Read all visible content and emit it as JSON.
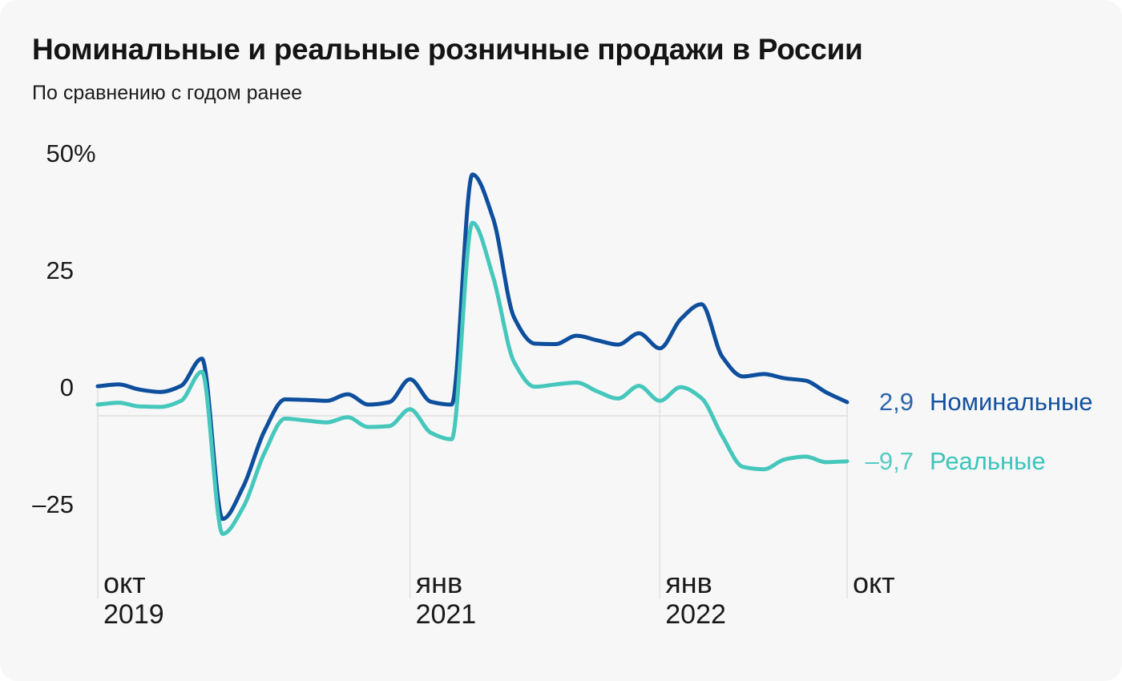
{
  "card": {
    "title": "Номинальные и реальные розничные продажи в России",
    "subtitle": "По сравнению с годом ранее"
  },
  "colors": {
    "background": "#F7F7F8",
    "text": "#1A1A1A",
    "grid": "#E0E0E0",
    "nominal_line": "#0E4F9D",
    "nominal_value": "#2B66AC",
    "nominal_name": "#12519E",
    "real_line": "#45C7BC",
    "real_value": "#55CCC2",
    "real_name": "#3CC5BA"
  },
  "chart_data": {
    "type": "line",
    "title": "Номинальные и реальные розничные продажи в России",
    "subtitle": "По сравнению с годом ранее",
    "unit": "%",
    "ylim": [
      -32,
      55
    ],
    "grid": "horizontal zero line + vertical lines at labeled months",
    "legend_position": "right of line ends",
    "x": [
      "2019-10",
      "2019-11",
      "2019-12",
      "2020-01",
      "2020-02",
      "2020-03",
      "2020-04",
      "2020-05",
      "2020-06",
      "2020-07",
      "2020-08",
      "2020-09",
      "2020-10",
      "2020-11",
      "2020-12",
      "2021-01",
      "2021-02",
      "2021-03",
      "2021-04",
      "2021-05",
      "2021-06",
      "2021-07",
      "2021-08",
      "2021-09",
      "2021-10",
      "2021-11",
      "2021-12",
      "2022-01",
      "2022-02",
      "2022-03",
      "2022-04",
      "2022-05",
      "2022-06",
      "2022-07",
      "2022-08",
      "2022-09",
      "2022-10"
    ],
    "series": [
      {
        "key": "nominal",
        "name": "Номинальные",
        "end_label": "2,9",
        "end_value": 2.9,
        "values": [
          6.3,
          6.7,
          5.6,
          5.1,
          6.4,
          12.2,
          -22.0,
          -15.0,
          -3.3,
          3.5,
          3.4,
          3.2,
          4.6,
          2.4,
          2.9,
          7.8,
          3.0,
          2.4,
          51.5,
          42.0,
          21.0,
          15.4,
          15.3,
          17.1,
          16.1,
          15.2,
          17.6,
          14.4,
          20.6,
          23.8,
          12.6,
          8.4,
          8.9,
          8.0,
          7.5,
          5.0,
          2.9
        ]
      },
      {
        "key": "real",
        "name": "Реальные",
        "end_label": "–9,7",
        "end_value": -9.7,
        "values": [
          2.4,
          2.8,
          2.0,
          1.9,
          3.2,
          9.4,
          -25.2,
          -19.4,
          -8.0,
          -0.6,
          -1.0,
          -1.4,
          -0.3,
          -2.4,
          -2.2,
          1.4,
          -3.6,
          -5.0,
          41.2,
          29.5,
          11.5,
          6.2,
          6.7,
          7.1,
          5.2,
          3.7,
          6.4,
          3.2,
          6.1,
          3.8,
          -4.3,
          -10.9,
          -11.4,
          -9.3,
          -8.7,
          -9.9,
          -9.7
        ]
      }
    ],
    "y_ticks": [
      {
        "value": 50,
        "label": "50",
        "suffix": "%"
      },
      {
        "value": 25,
        "label": "25",
        "suffix": ""
      },
      {
        "value": 0,
        "label": "0",
        "suffix": ""
      },
      {
        "value": -25,
        "label": "–25",
        "suffix": ""
      }
    ],
    "x_ticks": [
      {
        "index": 0,
        "month": "окт",
        "year": "2019"
      },
      {
        "index": 15,
        "month": "янв",
        "year": "2021"
      },
      {
        "index": 27,
        "month": "янв",
        "year": "2022"
      },
      {
        "index": 36,
        "month": "окт",
        "year": ""
      }
    ]
  }
}
